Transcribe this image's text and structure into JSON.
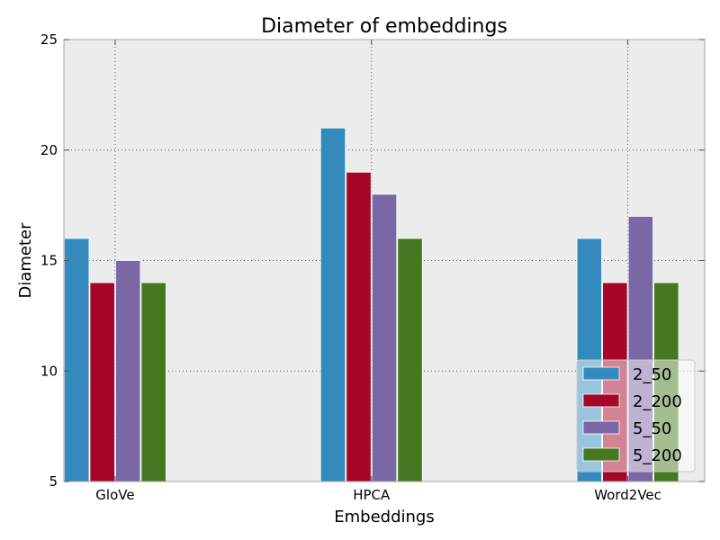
{
  "chart_data": {
    "type": "bar",
    "title": "Diameter of embeddings",
    "xlabel": "Embeddings",
    "ylabel": "Diameter",
    "categories": [
      "GloVe",
      "HPCA",
      "Word2Vec"
    ],
    "series": [
      {
        "name": "2_50",
        "values": [
          16,
          21,
          16
        ],
        "color": "#348abd"
      },
      {
        "name": "2_200",
        "values": [
          14,
          19,
          14
        ],
        "color": "#a60628"
      },
      {
        "name": "5_50",
        "values": [
          15,
          18,
          17
        ],
        "color": "#7a68a6"
      },
      {
        "name": "5_200",
        "values": [
          14,
          16,
          14
        ],
        "color": "#467821"
      }
    ],
    "ylim": [
      5,
      25
    ],
    "yticks": [
      5,
      10,
      15,
      20,
      25
    ],
    "grid": true,
    "legend": "lower-right",
    "colors": {
      "plot_background": "#ececec",
      "axis": "#a6a6a6",
      "grid": "#555555"
    }
  }
}
